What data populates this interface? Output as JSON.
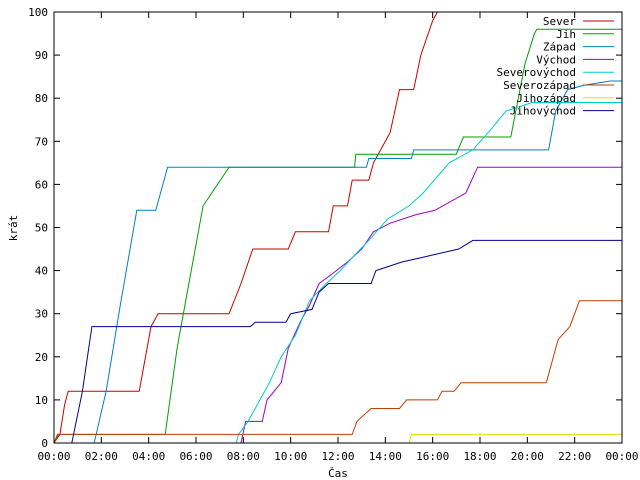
{
  "chart_data": {
    "type": "line",
    "xlabel": "Čas",
    "ylabel": "krát",
    "xlim": [
      0,
      24
    ],
    "ylim": [
      0,
      100
    ],
    "x_ticks": [
      "00:00",
      "02:00",
      "04:00",
      "06:00",
      "08:00",
      "10:00",
      "12:00",
      "14:00",
      "16:00",
      "18:00",
      "20:00",
      "22:00",
      "00:00"
    ],
    "y_ticks": [
      0,
      10,
      20,
      30,
      40,
      50,
      60,
      70,
      80,
      90,
      100
    ],
    "grid": false,
    "legend_position": "top-right",
    "series": [
      {
        "name": "Sever",
        "color": "#cc0000",
        "points": [
          [
            0,
            0
          ],
          [
            0.25,
            2
          ],
          [
            0.45,
            9
          ],
          [
            0.6,
            12
          ],
          [
            3.6,
            12
          ],
          [
            4.1,
            27
          ],
          [
            4.4,
            30
          ],
          [
            7.4,
            30
          ],
          [
            7.9,
            37
          ],
          [
            8.4,
            45
          ],
          [
            9.9,
            45
          ],
          [
            10.2,
            49
          ],
          [
            11.6,
            49
          ],
          [
            11.8,
            55
          ],
          [
            12.4,
            55
          ],
          [
            12.6,
            61
          ],
          [
            13.3,
            61
          ],
          [
            13.5,
            65
          ],
          [
            14.2,
            72
          ],
          [
            14.6,
            82
          ],
          [
            15.2,
            82
          ],
          [
            15.5,
            90
          ],
          [
            16.0,
            98
          ],
          [
            16.2,
            100
          ]
        ]
      },
      {
        "name": "Jih",
        "color": "#00a000",
        "points": [
          [
            0,
            0
          ],
          [
            0.2,
            2
          ],
          [
            4.7,
            2
          ],
          [
            5.2,
            22
          ],
          [
            5.6,
            34
          ],
          [
            6.3,
            55
          ],
          [
            7.4,
            64
          ],
          [
            12.7,
            64
          ],
          [
            12.75,
            67
          ],
          [
            17.0,
            67
          ],
          [
            17.3,
            71
          ],
          [
            19.3,
            71
          ],
          [
            19.9,
            88
          ],
          [
            20.3,
            95
          ],
          [
            20.4,
            96
          ],
          [
            24,
            96
          ]
        ]
      },
      {
        "name": "Západ",
        "color": "#0080c0",
        "points": [
          [
            0,
            0
          ],
          [
            1.7,
            0
          ],
          [
            2.2,
            12
          ],
          [
            2.8,
            32
          ],
          [
            3.5,
            54
          ],
          [
            4.3,
            54
          ],
          [
            4.8,
            64
          ],
          [
            13.2,
            64
          ],
          [
            13.3,
            66
          ],
          [
            15.1,
            66
          ],
          [
            15.2,
            68
          ],
          [
            20.9,
            68
          ],
          [
            21.2,
            77
          ],
          [
            21.5,
            80
          ],
          [
            21.7,
            82
          ],
          [
            22.4,
            83
          ],
          [
            23.5,
            84
          ],
          [
            24,
            84
          ]
        ]
      },
      {
        "name": "Východ",
        "color": "#a000c0",
        "points": [
          [
            0,
            0
          ],
          [
            7.9,
            0
          ],
          [
            8.1,
            5
          ],
          [
            8.8,
            5
          ],
          [
            9.0,
            10
          ],
          [
            9.6,
            14
          ],
          [
            9.9,
            22
          ],
          [
            10.4,
            28
          ],
          [
            10.8,
            32
          ],
          [
            11.2,
            37
          ],
          [
            11.7,
            39
          ],
          [
            12.4,
            42
          ],
          [
            13.0,
            45
          ],
          [
            13.5,
            49
          ],
          [
            14.2,
            51
          ],
          [
            15.3,
            53
          ],
          [
            16.1,
            54
          ],
          [
            17.4,
            58
          ],
          [
            17.9,
            64
          ],
          [
            24,
            64
          ]
        ]
      },
      {
        "name": "Severovýchod",
        "color": "#00cccc",
        "points": [
          [
            0,
            0
          ],
          [
            7.7,
            0
          ],
          [
            7.8,
            2
          ],
          [
            8.2,
            5
          ],
          [
            8.5,
            8
          ],
          [
            9.1,
            14
          ],
          [
            9.6,
            20
          ],
          [
            10.2,
            25
          ],
          [
            10.8,
            33
          ],
          [
            11.5,
            37
          ],
          [
            12.1,
            40
          ],
          [
            12.6,
            43
          ],
          [
            13.3,
            47
          ],
          [
            14.1,
            52
          ],
          [
            15.0,
            55
          ],
          [
            15.6,
            58
          ],
          [
            16.7,
            65
          ],
          [
            17.7,
            68
          ],
          [
            18.5,
            73
          ],
          [
            19.1,
            77
          ],
          [
            20.2,
            79
          ],
          [
            24,
            79
          ]
        ]
      },
      {
        "name": "Severozápad",
        "color": "#c04000",
        "points": [
          [
            0,
            0
          ],
          [
            0.15,
            2
          ],
          [
            12.6,
            2
          ],
          [
            12.8,
            5
          ],
          [
            13.4,
            8
          ],
          [
            14.6,
            8
          ],
          [
            14.9,
            10
          ],
          [
            16.2,
            10
          ],
          [
            16.4,
            12
          ],
          [
            16.9,
            12
          ],
          [
            17.2,
            14
          ],
          [
            20.8,
            14
          ],
          [
            21.3,
            24
          ],
          [
            21.8,
            27
          ],
          [
            22.2,
            33
          ],
          [
            24,
            33
          ]
        ]
      },
      {
        "name": "Jihozápad",
        "color": "#e0e000",
        "points": [
          [
            0,
            0
          ],
          [
            15.0,
            0
          ],
          [
            15.1,
            2
          ],
          [
            24,
            2
          ]
        ]
      },
      {
        "name": "Jihovýchod",
        "color": "#000090",
        "points": [
          [
            0,
            0
          ],
          [
            0.75,
            0
          ],
          [
            1.2,
            12
          ],
          [
            1.6,
            27
          ],
          [
            8.3,
            27
          ],
          [
            8.5,
            28
          ],
          [
            9.8,
            28
          ],
          [
            10.0,
            30
          ],
          [
            10.9,
            31
          ],
          [
            11.2,
            35
          ],
          [
            11.6,
            37
          ],
          [
            13.4,
            37
          ],
          [
            13.6,
            40
          ],
          [
            14.7,
            42
          ],
          [
            15.5,
            43
          ],
          [
            17.1,
            45
          ],
          [
            17.7,
            47
          ],
          [
            24,
            47
          ]
        ]
      }
    ]
  }
}
